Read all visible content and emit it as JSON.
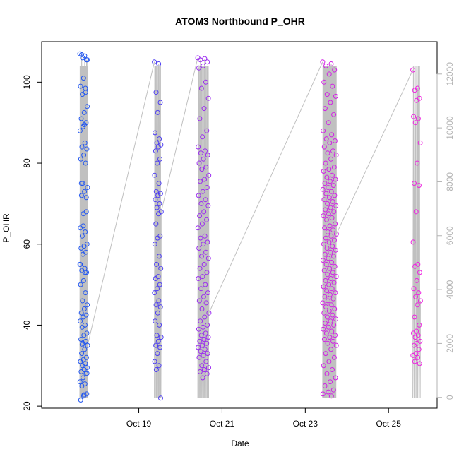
{
  "chart_data": {
    "type": "scatter",
    "title": "ATOM3 Northbound P_OHR",
    "xlabel": "Date",
    "ylabel": "P_OHR",
    "x_unit": "date",
    "xlim": [
      "2023-10-16T16:00",
      "2023-10-26T04:00"
    ],
    "ylim": [
      19.5,
      110
    ],
    "y2lim": [
      -400,
      13200
    ],
    "x_ticks": [
      {
        "label": "Oct 19",
        "value": "2023-10-19"
      },
      {
        "label": "Oct 21",
        "value": "2023-10-21"
      },
      {
        "label": "Oct 23",
        "value": "2023-10-23"
      },
      {
        "label": "Oct 25",
        "value": "2023-10-25"
      }
    ],
    "y_ticks": [
      20,
      40,
      60,
      80,
      100
    ],
    "y2_ticks": [
      0,
      2000,
      4000,
      6000,
      8000,
      10000,
      12000
    ],
    "grid": false,
    "colors": {
      "oct17": "#2458f0",
      "oct19": "#4d3ef2",
      "oct20": "#9b2cf0",
      "oct23": "#d21fe6",
      "oct25": "#ee22e0",
      "line": "#c0c0c0",
      "secondary_axis": "#b3b3b3"
    },
    "series": [
      {
        "date": "2023-10-17",
        "color_key": "oct17",
        "x_start_hours": 14,
        "x_end_hours": 18.5,
        "y": [
          107,
          106.5,
          106.8,
          105.5,
          101,
          99,
          98.5,
          97,
          94,
          92.5,
          91,
          90,
          89,
          88,
          85,
          84,
          83.5,
          82,
          81,
          80,
          75,
          74,
          73,
          72,
          71.5,
          67.5,
          64,
          63,
          62,
          60,
          59.5,
          59,
          58,
          57.5,
          55,
          54,
          53.5,
          53,
          51,
          50,
          48,
          46,
          45,
          44,
          43,
          42.5,
          42,
          41,
          40,
          39.5,
          38,
          37.5,
          36.5,
          36,
          35.5,
          35,
          34,
          33,
          32,
          31.5,
          31,
          30.5,
          30,
          29.5,
          29,
          28.5,
          28,
          27,
          26,
          25.5,
          25,
          23,
          22.5,
          21.5,
          97.5,
          106,
          105.5,
          89.5,
          75,
          68,
          64.5,
          55,
          53,
          35.2,
          28.1,
          22.8
        ]
      },
      {
        "date": "2023-10-19",
        "color_key": "oct19",
        "x_start_hours": 9,
        "x_end_hours": 13,
        "y": [
          105,
          104.5,
          97.5,
          95,
          92.5,
          87.5,
          86,
          85,
          84.5,
          84,
          83,
          81,
          80,
          77,
          75,
          73,
          72.5,
          72,
          71,
          70,
          69,
          68,
          67.5,
          65,
          62,
          61.5,
          60,
          57,
          55,
          54,
          52,
          51.5,
          50,
          49,
          48,
          46,
          45,
          44.5,
          43,
          41,
          40,
          37.5,
          37,
          36,
          35,
          34.5,
          33,
          31,
          30,
          29,
          22
        ]
      },
      {
        "date": "2023-10-20",
        "color_key": "oct20",
        "x_start_hours": 10,
        "x_end_hours": 16.5,
        "y": [
          106,
          105.8,
          105.5,
          105,
          104,
          103.5,
          100,
          98.5,
          96,
          93.5,
          91,
          88,
          86.5,
          84,
          83,
          82.5,
          82,
          81,
          80,
          79,
          78.5,
          77,
          76,
          75.5,
          74,
          73,
          72,
          71,
          70,
          69.5,
          68,
          67,
          66,
          65,
          64,
          62,
          61.5,
          60.5,
          60,
          59,
          58,
          57,
          56.5,
          55,
          54,
          53,
          52,
          51.5,
          50,
          49,
          48,
          47,
          46,
          45.5,
          44,
          43,
          42,
          41,
          40,
          39.5,
          39,
          38,
          37.5,
          37,
          36.5,
          36,
          35.5,
          35,
          34.5,
          34,
          33.5,
          33,
          32.5,
          32,
          31,
          30,
          29.5,
          29,
          28.5,
          28,
          27
        ]
      },
      {
        "date": "2023-10-23",
        "color_key": "oct23",
        "x_start_hours": 10,
        "x_end_hours": 18,
        "y": [
          105,
          104.5,
          104,
          103,
          102,
          100,
          99,
          97,
          96.5,
          95,
          93.5,
          92,
          90,
          88,
          87,
          86,
          85.5,
          85,
          84,
          83,
          82.5,
          82,
          81,
          80,
          79,
          78.5,
          78,
          77,
          76.5,
          76,
          75.5,
          75,
          74.5,
          74,
          73.5,
          73,
          72.5,
          72,
          71.5,
          71,
          70.5,
          70,
          69.5,
          69,
          68.5,
          68,
          67.5,
          67,
          66.5,
          66,
          65,
          64.5,
          64,
          63.5,
          63,
          62.5,
          62,
          61.5,
          61,
          60.5,
          60,
          59.5,
          59,
          58.5,
          58,
          57.5,
          57,
          56.5,
          56,
          55.5,
          55,
          54.5,
          54,
          53.5,
          53,
          52.5,
          52,
          51.5,
          51,
          50.5,
          50,
          49.5,
          49,
          48.5,
          48,
          47.5,
          47,
          46.5,
          46,
          45.5,
          45,
          44.5,
          44,
          43.5,
          43,
          42.5,
          42,
          41.5,
          41,
          40.5,
          40,
          39.5,
          39,
          38.5,
          38,
          37.5,
          37,
          36.5,
          36,
          35.5,
          35,
          34,
          33,
          32,
          31,
          30,
          29,
          28,
          27,
          26,
          25,
          24,
          23.5,
          23,
          22.5
        ]
      },
      {
        "date": "2023-10-25",
        "color_key": "oct25",
        "x_start_hours": 14,
        "x_end_hours": 18.5,
        "y": [
          103,
          98.5,
          98,
          96,
          95.5,
          91.5,
          91,
          90,
          85,
          80,
          75,
          74.5,
          68,
          60.5,
          55,
          54.5,
          53,
          51,
          49,
          48,
          47,
          46,
          45,
          42,
          40,
          38.5,
          38,
          37.5,
          37,
          36,
          35.5,
          35,
          34,
          33,
          32.5,
          32,
          31,
          30.5
        ]
      }
    ]
  }
}
